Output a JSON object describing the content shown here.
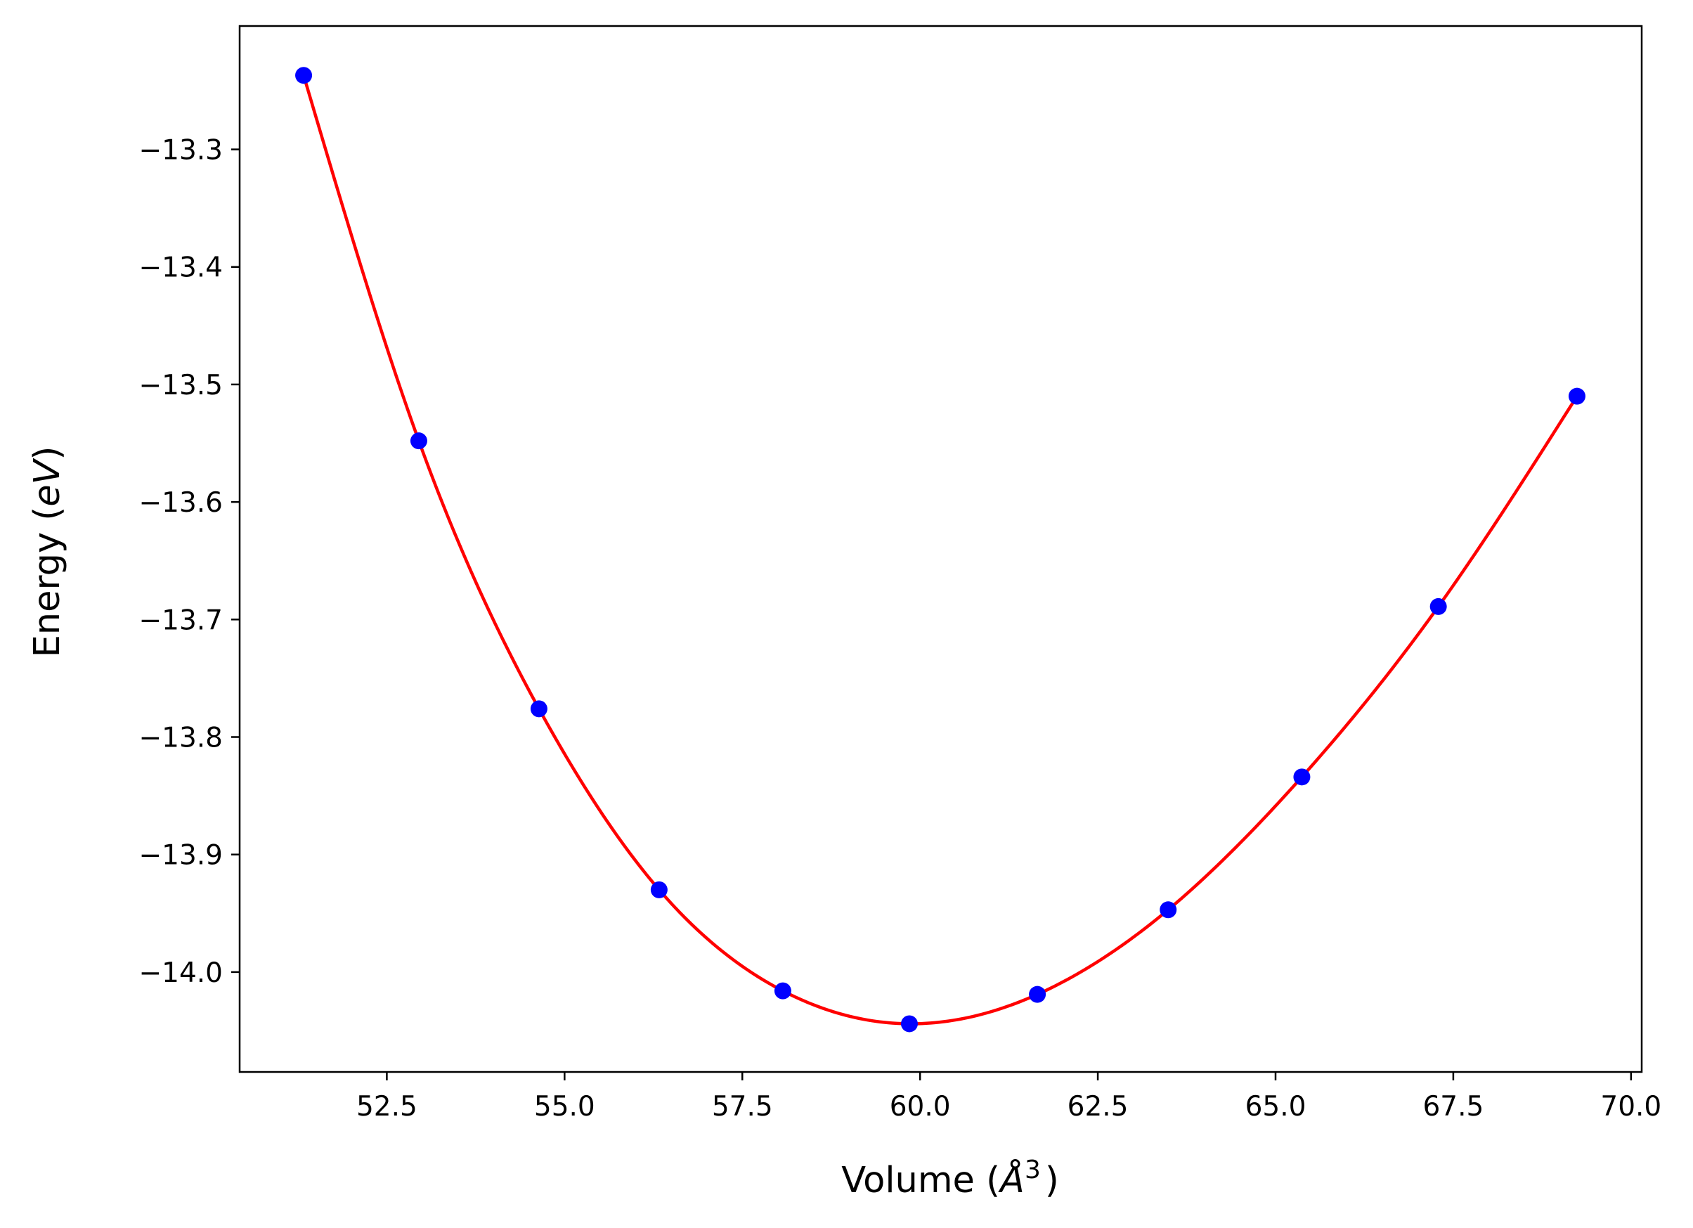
{
  "chart_data": {
    "type": "scatter",
    "xlabel": "Volume ($\\AA^3$)",
    "xlabel_text": "Volume (",
    "xlabel_unit": "Å",
    "xlabel_exp": "3",
    "xlabel_close": ")",
    "ylabel_text": "Energy (",
    "ylabel_unit": "eV",
    "ylabel_close": ")",
    "xlim": [
      50.43,
      70.15
    ],
    "ylim": [
      -14.085,
      -13.195
    ],
    "xticks": [
      52.5,
      55.0,
      57.5,
      60.0,
      62.5,
      65.0,
      67.5,
      70.0
    ],
    "xtick_labels": [
      "52.5",
      "55.0",
      "57.5",
      "60.0",
      "62.5",
      "65.0",
      "67.5",
      "70.0"
    ],
    "yticks": [
      -14.0,
      -13.9,
      -13.8,
      -13.7,
      -13.6,
      -13.5,
      -13.4,
      -13.3
    ],
    "ytick_labels": [
      "−14.0",
      "−13.9",
      "−13.8",
      "−13.7",
      "−13.6",
      "−13.5",
      "−13.4",
      "−13.3"
    ],
    "grid": false,
    "series": [
      {
        "kind": "points",
        "color": "#0000ff",
        "x": [
          51.33,
          52.95,
          54.64,
          56.33,
          58.07,
          59.85,
          61.65,
          63.49,
          65.37,
          67.29,
          69.24
        ],
        "y": [
          -13.237,
          -13.548,
          -13.776,
          -13.93,
          -14.016,
          -14.044,
          -14.019,
          -13.947,
          -13.834,
          -13.689,
          -13.51
        ]
      },
      {
        "kind": "fit-curve",
        "color": "#ff0000",
        "x": [
          51.33,
          52.95,
          54.64,
          56.33,
          58.07,
          59.85,
          61.65,
          63.49,
          65.37,
          67.29,
          69.24
        ],
        "y": [
          -13.237,
          -13.548,
          -13.776,
          -13.93,
          -14.016,
          -14.044,
          -14.019,
          -13.947,
          -13.834,
          -13.689,
          -13.51
        ]
      }
    ]
  }
}
